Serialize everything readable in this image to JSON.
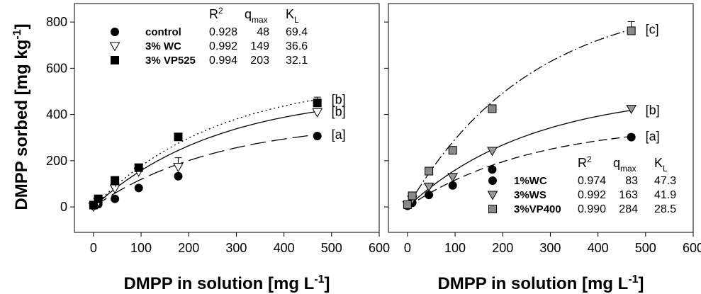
{
  "figure": {
    "y_axis_label": "DMPP sorbed [mg kg",
    "y_axis_label_sup": "-1",
    "y_axis_label_end": "]"
  },
  "chart_data": [
    {
      "type": "scatter",
      "panel": "left",
      "xlabel": "DMPP in solution [mg L",
      "xlabel_sup": "-1",
      "xlabel_end": "]",
      "xlim": [
        -40,
        600
      ],
      "ylim": [
        -110,
        880
      ],
      "xticks": [
        0,
        100,
        200,
        300,
        400,
        500,
        600
      ],
      "yticks": [
        0,
        200,
        400,
        600,
        800
      ],
      "legend": {
        "placement": "top-center",
        "headers": {
          "r2": "R",
          "r2_sup": "2",
          "q": "q",
          "q_sub": "max",
          "k": "K",
          "k_sub": "L"
        }
      },
      "series": [
        {
          "name": "control",
          "marker": "circle",
          "fill": "#000000",
          "r2": "0.928",
          "qmax": "48",
          "kl": "69.4",
          "x": [
            0,
            10,
            45,
            95,
            178,
            470
          ],
          "y": [
            5,
            12,
            35,
            82,
            133,
            307
          ],
          "err": [
            0,
            0,
            0,
            0,
            0,
            8
          ],
          "line_style": "longdash",
          "curve_x": [
            0,
            470
          ],
          "curve_y": [
            0,
            313
          ],
          "letter": "[a]"
        },
        {
          "name": "3% WC",
          "marker": "triangle-down",
          "fill": "#ffffff",
          "r2": "0.992",
          "qmax": "149",
          "kl": "36.6",
          "x": [
            0,
            10,
            45,
            95,
            178,
            470
          ],
          "y": [
            2,
            22,
            80,
            153,
            173,
            410
          ],
          "err": [
            0,
            0,
            0,
            0,
            40,
            15
          ],
          "line_style": "solid",
          "curve_x": [
            0,
            470
          ],
          "curve_y": [
            0,
            413
          ],
          "letter": "[b]"
        },
        {
          "name": "3% VP525",
          "marker": "square",
          "fill": "#000000",
          "r2": "0.994",
          "qmax": "203",
          "kl": "32.1",
          "x": [
            0,
            10,
            45,
            95,
            178,
            470
          ],
          "y": [
            8,
            35,
            115,
            170,
            303,
            450
          ],
          "err": [
            0,
            0,
            0,
            0,
            0,
            25
          ],
          "line_style": "dotted",
          "curve_x": [
            0,
            470
          ],
          "curve_y": [
            0,
            465
          ],
          "letter": "[b]"
        }
      ]
    },
    {
      "type": "scatter",
      "panel": "right",
      "xlabel": "DMPP in solution [mg L",
      "xlabel_sup": "-1",
      "xlabel_end": "]",
      "xlim": [
        -40,
        600
      ],
      "ylim": [
        -110,
        880
      ],
      "xticks": [
        0,
        100,
        200,
        300,
        400,
        500,
        600
      ],
      "yticks": [
        0,
        200,
        400,
        600,
        800
      ],
      "legend": {
        "placement": "bottom-right",
        "headers": {
          "r2": "R",
          "r2_sup": "2",
          "q": "q",
          "q_sub": "max",
          "k": "K",
          "k_sub": "L"
        }
      },
      "series": [
        {
          "name": "1%WC",
          "marker": "circle",
          "fill": "#000000",
          "r2": "0.974",
          "qmax": "83",
          "kl": "47.3",
          "x": [
            0,
            10,
            45,
            95,
            178,
            470
          ],
          "y": [
            5,
            18,
            52,
            93,
            162,
            302
          ],
          "err": [
            0,
            0,
            0,
            0,
            0,
            12
          ],
          "line_style": "dash",
          "curve_x": [
            0,
            470
          ],
          "curve_y": [
            0,
            305
          ],
          "letter": "[a]"
        },
        {
          "name": "3%WS",
          "marker": "triangle-down",
          "fill": "#9a9a9a",
          "r2": "0.992",
          "qmax": "163",
          "kl": "41.9",
          "x": [
            0,
            10,
            45,
            95,
            178,
            470
          ],
          "y": [
            8,
            32,
            88,
            130,
            243,
            425
          ],
          "err": [
            0,
            0,
            0,
            0,
            0,
            15
          ],
          "line_style": "solid",
          "curve_x": [
            0,
            470
          ],
          "curve_y": [
            0,
            418
          ],
          "letter": "[b]"
        },
        {
          "name": "3%VP400",
          "marker": "square",
          "fill": "#8a8a8a",
          "r2": "0.990",
          "qmax": "284",
          "kl": "28.5",
          "x": [
            0,
            10,
            45,
            95,
            178,
            470
          ],
          "y": [
            10,
            48,
            155,
            245,
            425,
            762
          ],
          "err": [
            0,
            0,
            0,
            0,
            0,
            40
          ],
          "line_style": "dashdot",
          "curve_x": [
            0,
            470
          ],
          "curve_y": [
            0,
            768
          ],
          "letter": "[c]"
        }
      ]
    }
  ]
}
